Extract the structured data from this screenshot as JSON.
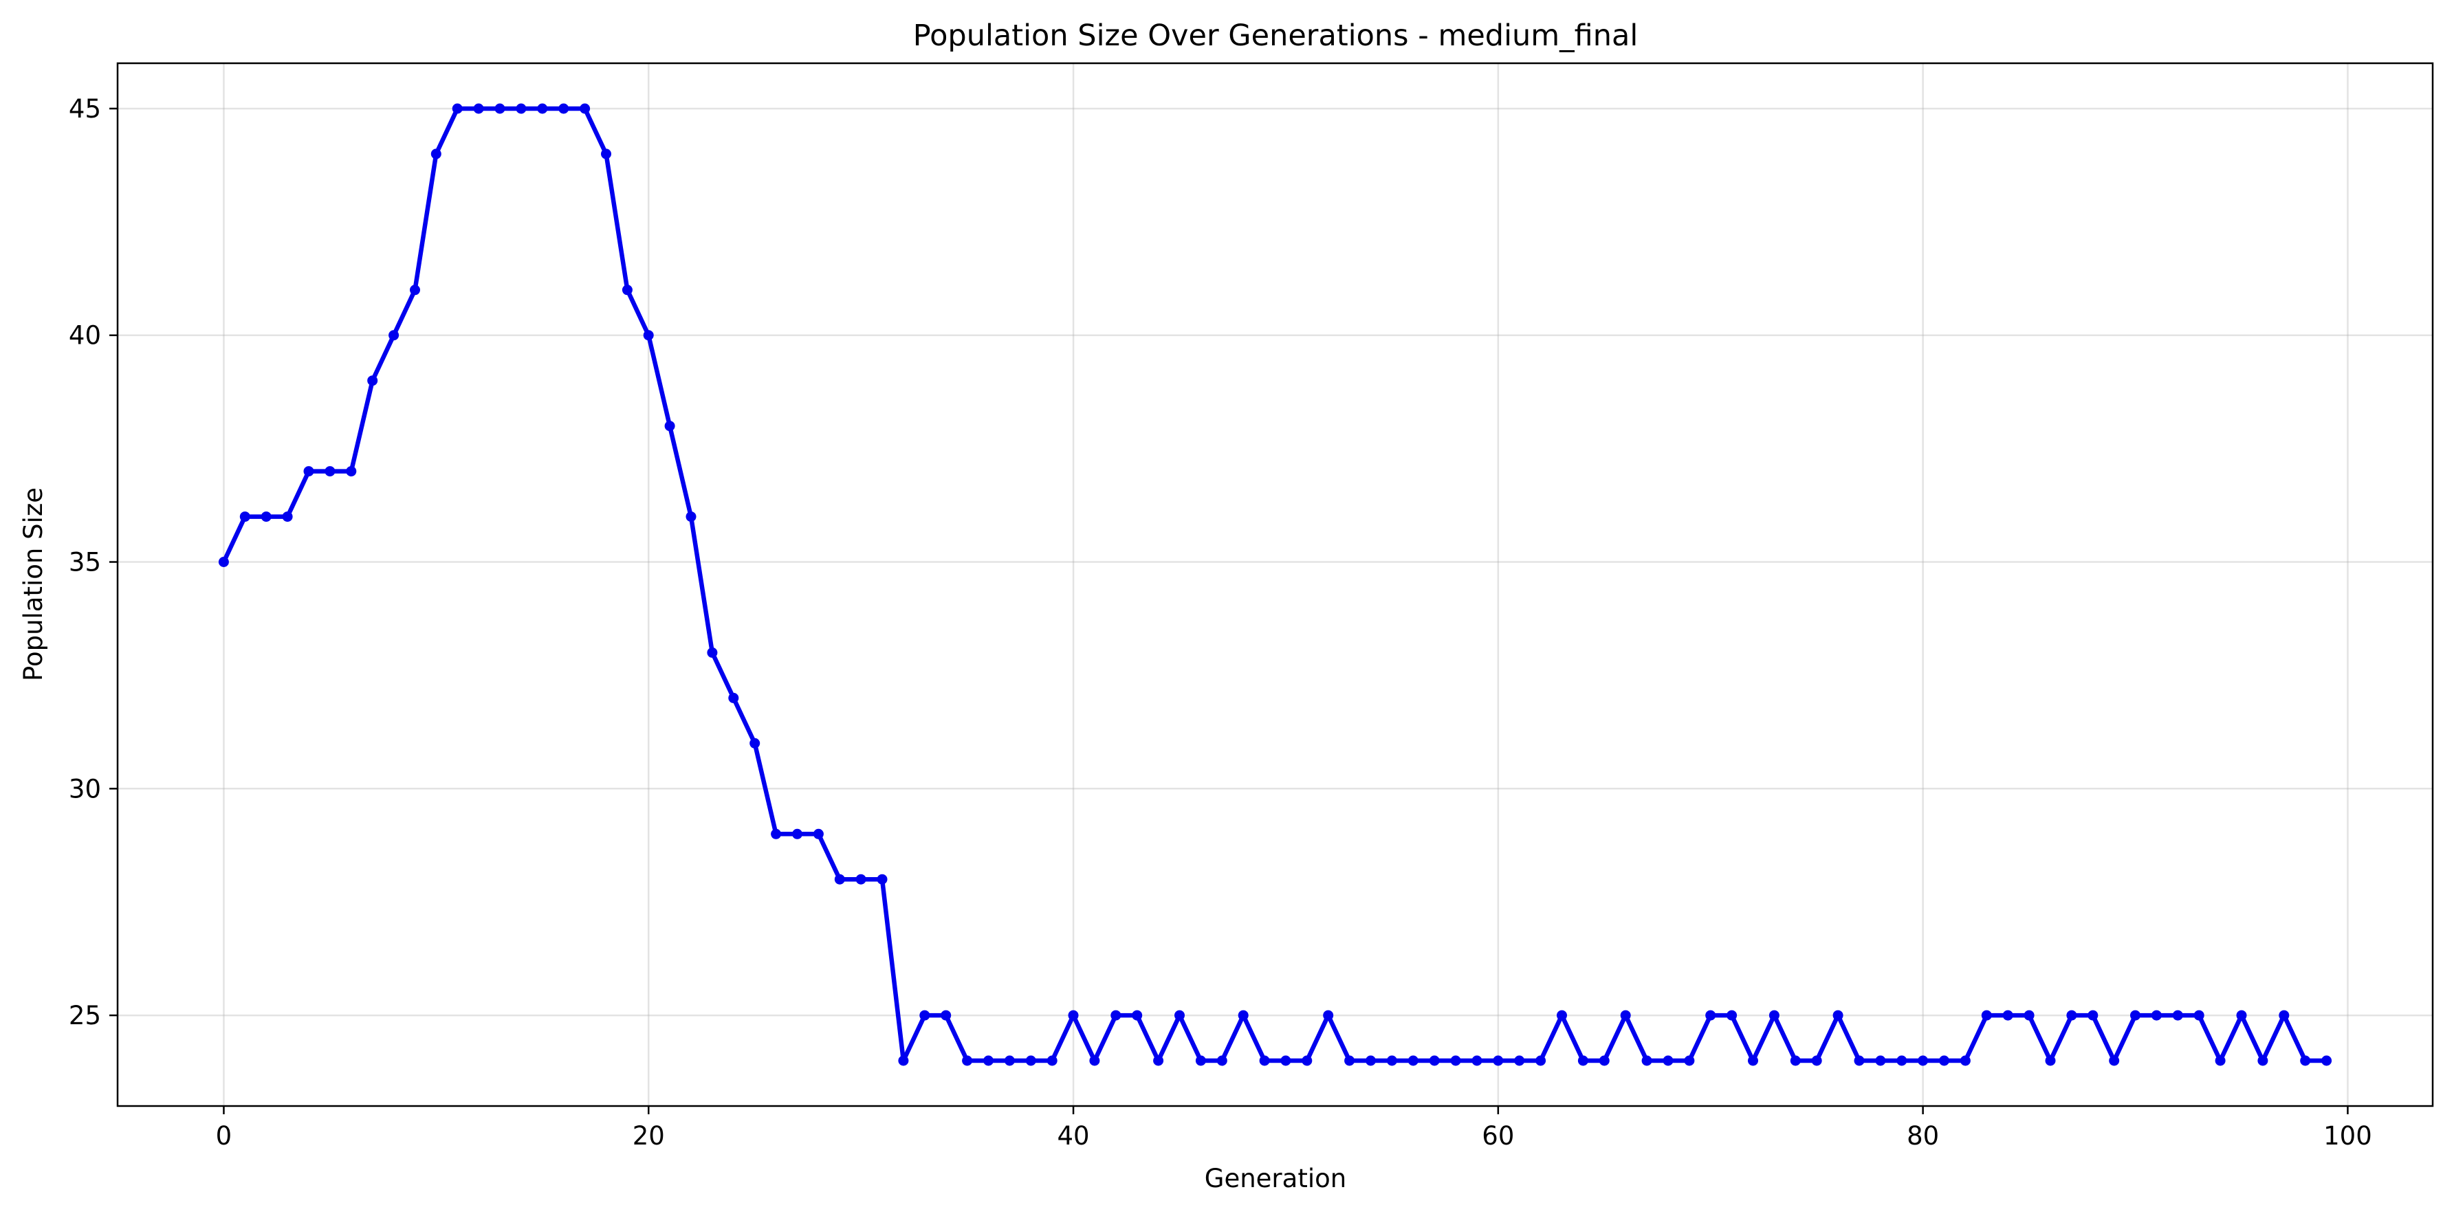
{
  "chart_data": {
    "type": "line",
    "title": "Population Size Over Generations - medium_final",
    "xlabel": "Generation",
    "ylabel": "Population Size",
    "xlim": [
      -5,
      104
    ],
    "ylim": [
      23,
      46
    ],
    "xticks": [
      0,
      20,
      40,
      60,
      80,
      100
    ],
    "yticks": [
      25,
      30,
      35,
      40,
      45
    ],
    "grid": true,
    "legend": "none",
    "series": [
      {
        "color": "#0000ee",
        "marker": "circle",
        "x": [
          0,
          1,
          2,
          3,
          4,
          5,
          6,
          7,
          8,
          9,
          10,
          11,
          12,
          13,
          14,
          15,
          16,
          17,
          18,
          19,
          20,
          21,
          22,
          23,
          24,
          25,
          26,
          27,
          28,
          29,
          30,
          31,
          32,
          33,
          34,
          35,
          36,
          37,
          38,
          39,
          40,
          41,
          42,
          43,
          44,
          45,
          46,
          47,
          48,
          49,
          50,
          51,
          52,
          53,
          54,
          55,
          56,
          57,
          58,
          59,
          60,
          61,
          62,
          63,
          64,
          65,
          66,
          67,
          68,
          69,
          70,
          71,
          72,
          73,
          74,
          75,
          76,
          77,
          78,
          79,
          80,
          81,
          82,
          83,
          84,
          85,
          86,
          87,
          88,
          89,
          90,
          91,
          92,
          93,
          94,
          95,
          96,
          97,
          98,
          99
        ],
        "values": [
          35,
          36,
          36,
          36,
          37,
          37,
          37,
          39,
          40,
          41,
          44,
          45,
          45,
          45,
          45,
          45,
          45,
          45,
          44,
          41,
          40,
          38,
          36,
          33,
          32,
          31,
          29,
          29,
          29,
          28,
          28,
          28,
          24,
          25,
          25,
          24,
          24,
          24,
          24,
          24,
          25,
          24,
          25,
          25,
          24,
          25,
          24,
          24,
          25,
          24,
          24,
          24,
          25,
          24,
          24,
          24,
          24,
          24,
          24,
          24,
          24,
          24,
          24,
          25,
          24,
          24,
          25,
          24,
          24,
          24,
          25,
          25,
          24,
          25,
          24,
          24,
          25,
          24,
          24,
          24,
          24,
          24,
          24,
          25,
          25,
          25,
          24,
          25,
          25,
          24,
          25,
          25,
          25,
          25,
          24,
          25,
          24,
          25,
          24,
          24
        ]
      }
    ]
  }
}
